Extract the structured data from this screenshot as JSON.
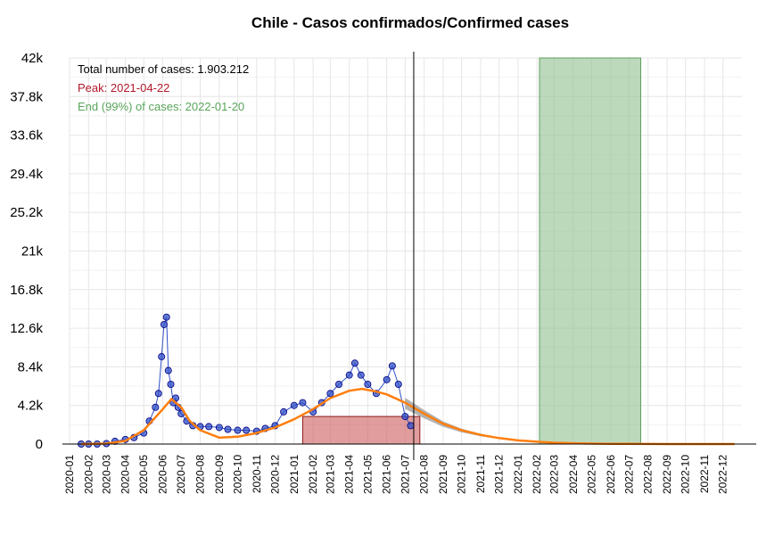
{
  "chart_data": {
    "type": "line",
    "title": "Chile - Casos confirmados/Confirmed cases",
    "xlabel": "",
    "ylabel": "",
    "ylim": [
      0,
      42000
    ],
    "xlim": [
      "2020-01-01",
      "2023-01-01"
    ],
    "grid": true,
    "legend": "none",
    "y_ticks": [
      "0",
      "4.2k",
      "8.4k",
      "12.6k",
      "16.8k",
      "21k",
      "25.2k",
      "29.4k",
      "33.6k",
      "37.8k",
      "42k"
    ],
    "y_tick_values": [
      0,
      4200,
      8400,
      12600,
      16800,
      21000,
      25200,
      29400,
      33600,
      37800,
      42000
    ],
    "x_ticks": [
      "2020-01",
      "2020-02",
      "2020-03",
      "2020-04",
      "2020-05",
      "2020-06",
      "2020-07",
      "2020-08",
      "2020-09",
      "2020-10",
      "2020-11",
      "2020-12",
      "2021-01",
      "2021-02",
      "2021-03",
      "2021-04",
      "2021-05",
      "2021-06",
      "2021-07",
      "2021-08",
      "2021-09",
      "2021-10",
      "2021-11",
      "2021-12",
      "2022-01",
      "2022-02",
      "2022-03",
      "2022-04",
      "2022-05",
      "2022-06",
      "2022-07",
      "2022-08",
      "2022-09",
      "2022-10",
      "2022-11",
      "2022-12"
    ],
    "annotations": [
      {
        "text": "Total number of cases: 1.903.212",
        "color": "#000000"
      },
      {
        "text": "Peak: 2021-04-22",
        "color": "#b2182b"
      },
      {
        "text": "End (99%) of cases: 2022-01-20",
        "color": "#5aa55a"
      }
    ],
    "vertical_line": {
      "date": "2021-07-15",
      "color": "#000000"
    },
    "shaded_regions": [
      {
        "start": "2021-01-15",
        "end": "2021-07-25",
        "height": 3000,
        "fill": "#cd5c5c",
        "stroke": "#8b1a1a"
      },
      {
        "start": "2022-02-05",
        "end": "2022-07-20",
        "height": 42000,
        "fill": "#8fbf8f",
        "stroke": "#5f9f5f"
      }
    ],
    "series": [
      {
        "type": "observed",
        "color": "#3050c8",
        "stroke": "#000080",
        "x": [
          "2020-01-20",
          "2020-02-01",
          "2020-02-15",
          "2020-03-01",
          "2020-03-15",
          "2020-04-01",
          "2020-04-15",
          "2020-05-01",
          "2020-05-10",
          "2020-05-20",
          "2020-05-25",
          "2020-05-30",
          "2020-06-03",
          "2020-06-07",
          "2020-06-10",
          "2020-06-14",
          "2020-06-18",
          "2020-06-22",
          "2020-06-26",
          "2020-07-01",
          "2020-07-10",
          "2020-07-20",
          "2020-08-01",
          "2020-08-15",
          "2020-09-01",
          "2020-09-15",
          "2020-10-01",
          "2020-10-15",
          "2020-11-01",
          "2020-11-15",
          "2020-12-01",
          "2020-12-15",
          "2021-01-01",
          "2021-01-15",
          "2021-02-01",
          "2021-02-15",
          "2021-03-01",
          "2021-03-15",
          "2021-04-01",
          "2021-04-10",
          "2021-04-20",
          "2021-05-01",
          "2021-05-15",
          "2021-06-01",
          "2021-06-10",
          "2021-06-20",
          "2021-07-01",
          "2021-07-10"
        ],
        "values": [
          0,
          0,
          0,
          50,
          300,
          500,
          700,
          1200,
          2500,
          4000,
          5500,
          9500,
          13000,
          13800,
          8000,
          6500,
          4500,
          5000,
          4000,
          3300,
          2500,
          2000,
          1900,
          1900,
          1800,
          1600,
          1500,
          1500,
          1400,
          1700,
          2000,
          3500,
          4200,
          4500,
          3500,
          4500,
          5500,
          6500,
          7500,
          8800,
          7500,
          6500,
          5500,
          7000,
          8500,
          6500,
          3000,
          2000
        ]
      },
      {
        "type": "fit",
        "color": "#ff7f0e",
        "x": [
          "2020-01-20",
          "2020-03-01",
          "2020-04-01",
          "2020-05-01",
          "2020-06-01",
          "2020-06-15",
          "2020-07-01",
          "2020-07-15",
          "2020-08-01",
          "2020-09-01",
          "2020-10-01",
          "2020-11-01",
          "2020-12-01",
          "2021-01-01",
          "2021-02-01",
          "2021-03-01",
          "2021-04-01",
          "2021-04-22",
          "2021-05-15",
          "2021-06-01",
          "2021-07-01",
          "2021-08-01",
          "2021-09-01",
          "2021-10-01",
          "2021-11-01",
          "2021-12-01",
          "2022-01-01",
          "2022-02-01",
          "2022-03-01",
          "2022-04-01",
          "2022-05-01",
          "2022-06-01",
          "2022-07-01",
          "2022-08-01",
          "2022-09-01",
          "2022-10-01",
          "2022-11-01",
          "2022-12-01",
          "2022-12-20"
        ],
        "values": [
          0,
          50,
          350,
          1500,
          3800,
          4900,
          4000,
          2500,
          1500,
          700,
          800,
          1200,
          1800,
          2700,
          3800,
          5000,
          5800,
          6000,
          5700,
          5400,
          4500,
          3300,
          2200,
          1500,
          1000,
          650,
          400,
          250,
          150,
          90,
          50,
          30,
          15,
          8,
          4,
          2,
          1,
          0,
          0
        ]
      }
    ]
  }
}
